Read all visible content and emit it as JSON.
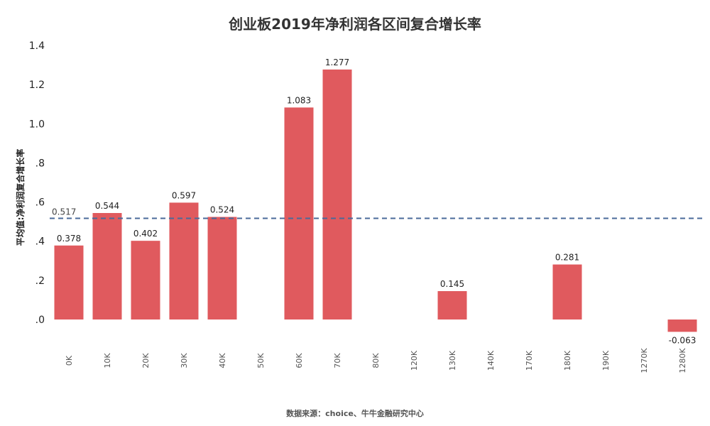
{
  "chart_data": {
    "type": "bar",
    "title": "创业板2019年净利润各区间复合增长率",
    "ylabel": "平均值:净利润复合增长率",
    "xlabel": "",
    "source": "数据来源：choice、牛牛金融研究中心",
    "categories": [
      "0K",
      "10K",
      "20K",
      "30K",
      "40K",
      "50K",
      "60K",
      "70K",
      "80K",
      "120K",
      "130K",
      "140K",
      "170K",
      "180K",
      "190K",
      "1270K",
      "1280K"
    ],
    "values": [
      0.378,
      0.544,
      0.402,
      0.597,
      0.524,
      null,
      1.083,
      1.277,
      null,
      null,
      0.145,
      null,
      null,
      0.281,
      null,
      null,
      -0.063
    ],
    "data_labels": [
      "0.378",
      "0.544",
      "0.402",
      "0.597",
      "0.524",
      "",
      "1.083",
      "1.277",
      "",
      "",
      "0.145",
      "",
      "",
      "0.281",
      "",
      "",
      "-0.063"
    ],
    "yticks": [
      0,
      0.2,
      0.4,
      0.6,
      0.8,
      1.0,
      1.2,
      1.4
    ],
    "ytick_labels": [
      ".0",
      ".2",
      ".4",
      ".6",
      ".8",
      "1.0",
      "1.2",
      "1.4"
    ],
    "ylim": [
      -0.1,
      1.4
    ],
    "reference_line": {
      "value": 0.517,
      "label": "0.517",
      "style": "dashed",
      "color": "#4a6a9a"
    },
    "bar_color": "#e05a5e",
    "grid": false,
    "legend": "none"
  }
}
